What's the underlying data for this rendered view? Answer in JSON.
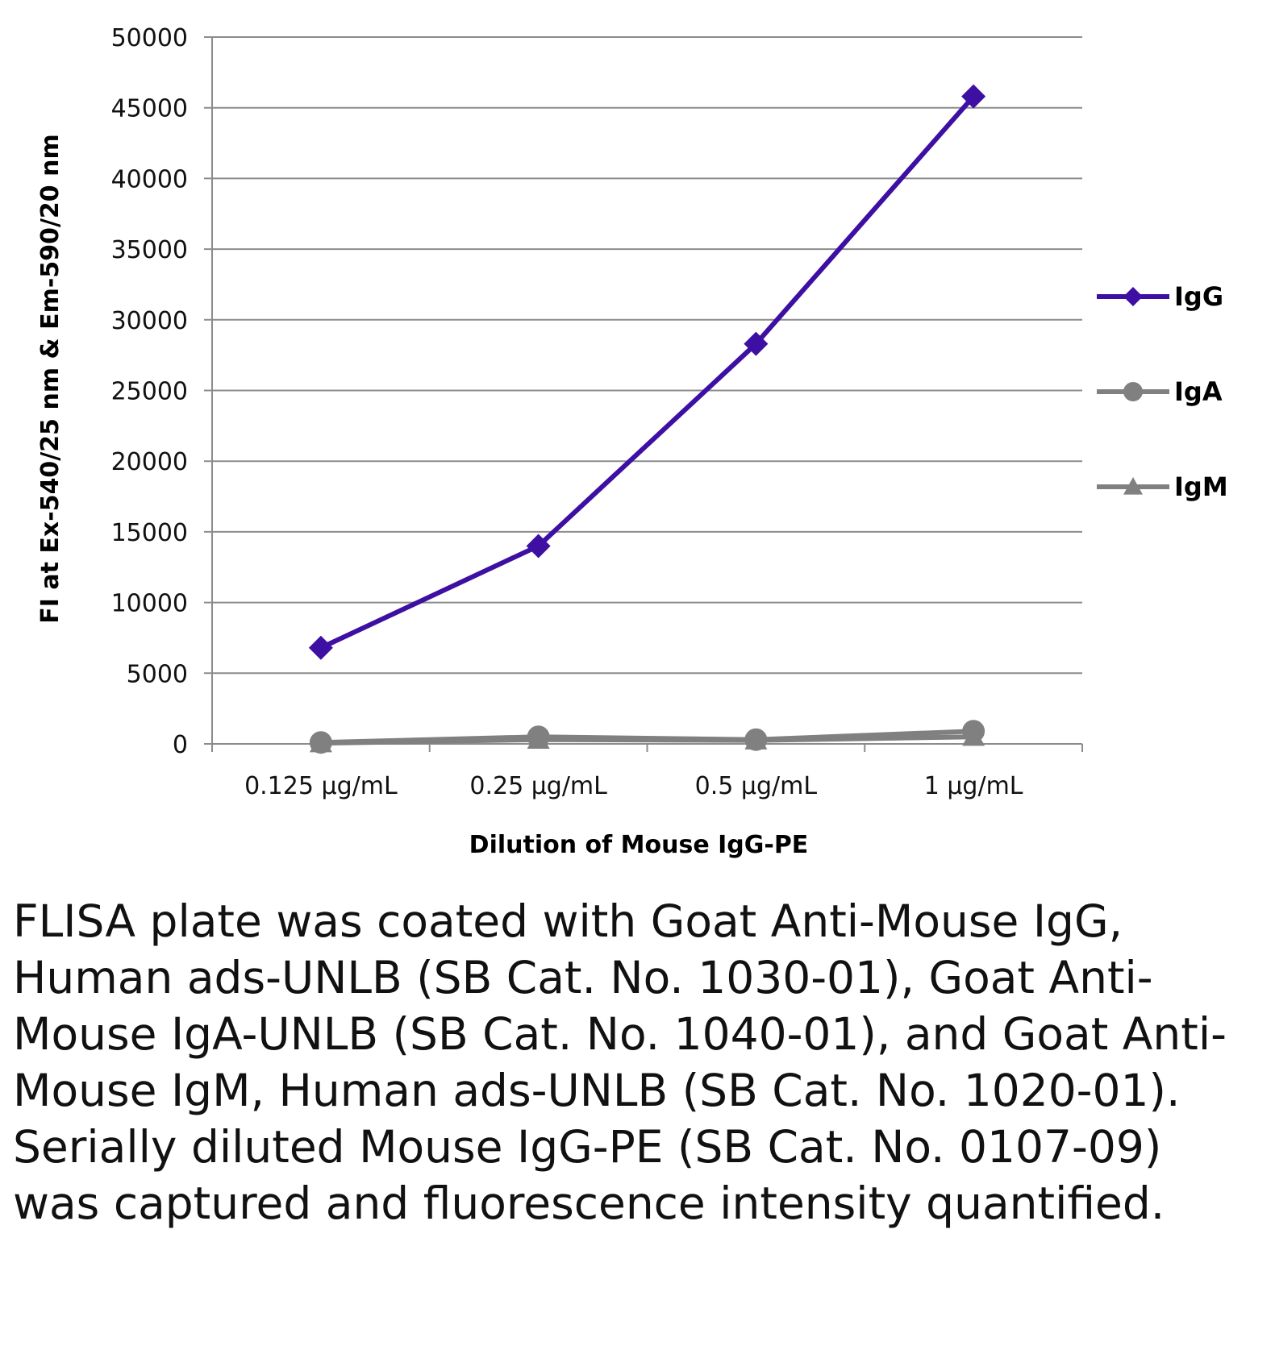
{
  "chart_data": {
    "type": "line",
    "title": "",
    "xlabel": "Dilution of Mouse IgG-PE",
    "ylabel": "FI at Ex-540/25 nm & Em-590/20 nm",
    "categories": [
      "0.125 µg/mL",
      "0.25 µg/mL",
      "0.5 µg/mL",
      "1 µg/mL"
    ],
    "ylim": [
      0,
      50000
    ],
    "yticks": [
      0,
      5000,
      10000,
      15000,
      20000,
      25000,
      30000,
      35000,
      40000,
      45000,
      50000
    ],
    "ytick_labels": [
      "0",
      "5000",
      "10000",
      "15000",
      "20000",
      "25000",
      "30000",
      "35000",
      "40000",
      "45000",
      "50000"
    ],
    "grid": "horizontal",
    "legend": "right",
    "series": [
      {
        "name": "IgG",
        "marker": "diamond",
        "color": "#3d0fa3",
        "values": [
          6800,
          14000,
          28300,
          45800
        ]
      },
      {
        "name": "IgA",
        "marker": "circle",
        "color": "#808080",
        "values": [
          100,
          500,
          300,
          900
        ]
      },
      {
        "name": "IgM",
        "marker": "triangle",
        "color": "#808080",
        "values": [
          50,
          300,
          250,
          500
        ]
      }
    ]
  },
  "caption": "FLISA plate was coated with Goat Anti-Mouse IgG, Human ads-UNLB (SB Cat. No. 1030-01), Goat Anti-Mouse IgA-UNLB (SB Cat. No. 1040-01), and Goat Anti-Mouse IgM, Human ads-UNLB (SB Cat. No. 1020-01). Serially diluted Mouse IgG-PE (SB Cat. No. 0107-09) was captured and fluorescence intensity quantified."
}
